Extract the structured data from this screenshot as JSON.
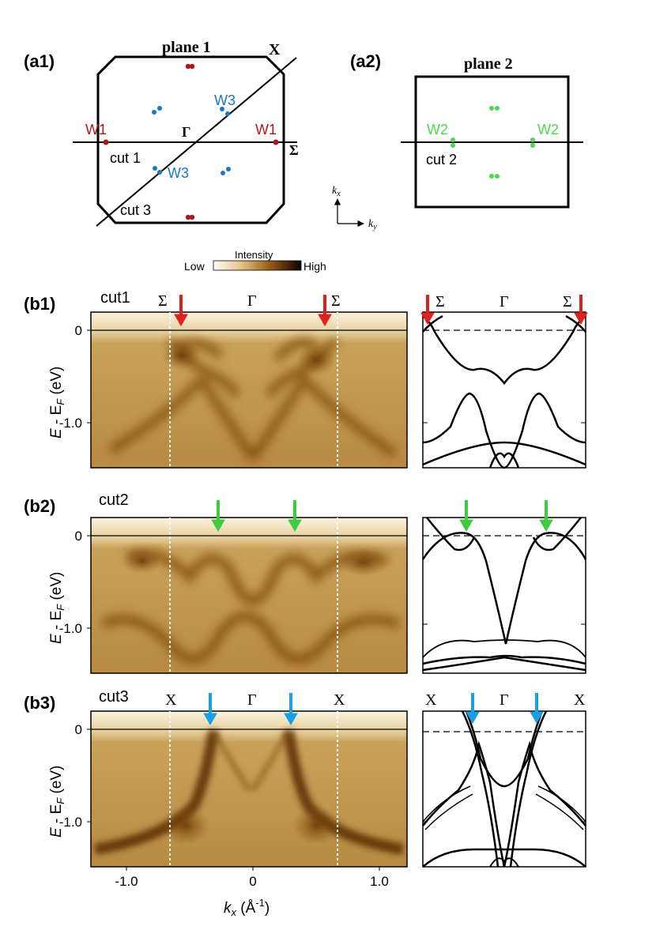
{
  "panels": {
    "a1": "(a1)",
    "a2": "(a2)",
    "b1": "(b1)",
    "b2": "(b2)",
    "b3": "(b3)"
  },
  "plane1": {
    "title": "plane 1",
    "corner_label": "X",
    "center_label": "Γ",
    "edge_label": "Σ",
    "cut1": "cut 1",
    "cut3": "cut 3",
    "w1_left": "W1",
    "w1_right": "W1",
    "w3_top": "W3",
    "w3_bottom": "W3"
  },
  "plane2": {
    "title": "plane 2",
    "w2_left": "W2",
    "w2_right": "W2",
    "cut2": "cut 2"
  },
  "axes_inset": {
    "kx": "k",
    "kx_sub": "x",
    "ky": "k",
    "ky_sub": "y"
  },
  "colorbar": {
    "title": "Intensity",
    "low": "Low",
    "high": "High"
  },
  "cuts": {
    "b1": {
      "name": "cut1",
      "left": "Σ",
      "center": "Γ",
      "right": "Σ",
      "calc_left": "Σ",
      "calc_center": "Γ",
      "calc_right": "Σ"
    },
    "b2": {
      "name": "cut2"
    },
    "b3": {
      "name": "cut3",
      "left": "X",
      "center": "Γ",
      "right": "X",
      "calc_left": "X",
      "calc_center": "Γ",
      "calc_right": "X"
    }
  },
  "yaxis": {
    "label_E": "E",
    "label_rest": " - E",
    "label_sub": "F",
    "label_unit": " (eV)",
    "tick0": "0",
    "tick1": "-1.0"
  },
  "xaxis": {
    "ticks": [
      "-1.0",
      "0",
      "1.0"
    ],
    "label_k": "k",
    "label_sub": "x",
    "label_unit": " (Å",
    "label_exp": "-1",
    "label_close": ")"
  },
  "colors": {
    "red": "#e0201c",
    "green": "#3ccc3c",
    "blue": "#1aa0e0",
    "w1": "#b01818",
    "w3": "#1a78c0",
    "w2": "#4cd94c"
  }
}
